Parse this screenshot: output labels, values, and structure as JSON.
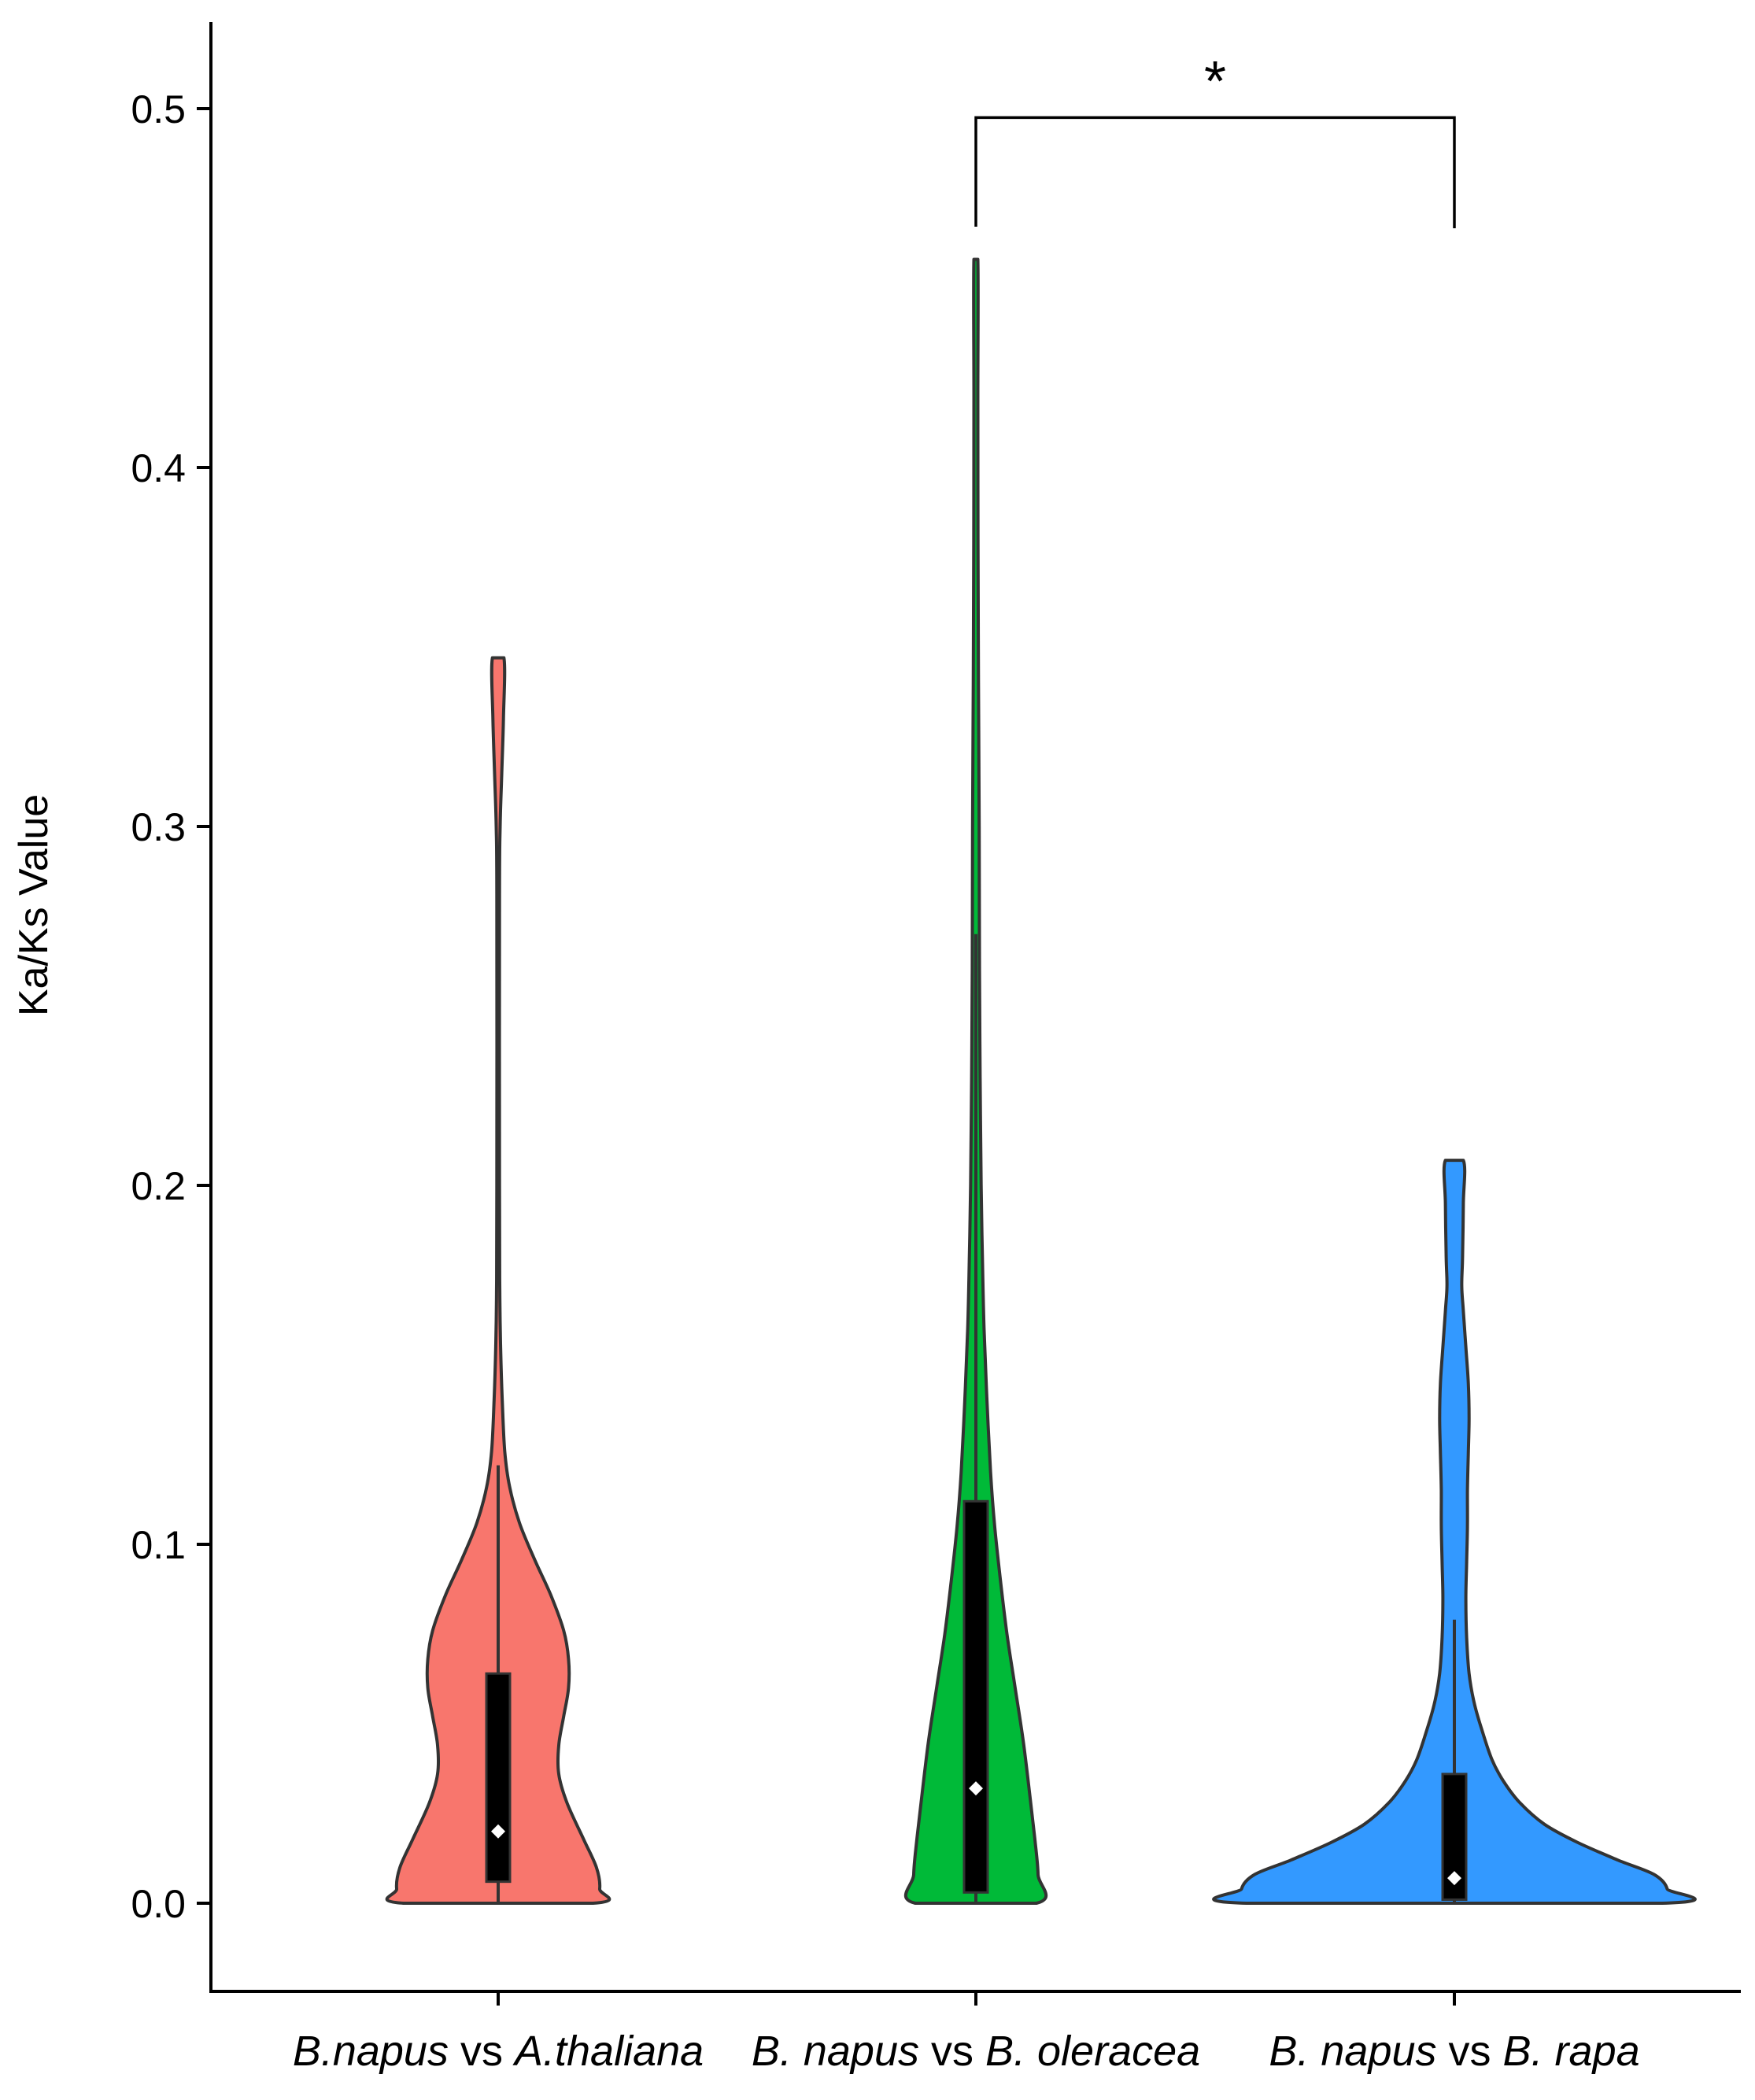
{
  "chart_data": {
    "type": "violin",
    "ylabel": "Ka/Ks Value",
    "ylim": [
      -0.025,
      0.525
    ],
    "yticks": [
      "0.0",
      "0.1",
      "0.2",
      "0.3",
      "0.4",
      "0.5"
    ],
    "ytick_values": [
      0.0,
      0.1,
      0.2,
      0.3,
      0.4,
      0.5
    ],
    "grid": false,
    "legend": "none",
    "categories": [
      {
        "parts": [
          {
            "text": "B.napus",
            "italic": true
          },
          {
            "text": " vs ",
            "italic": false
          },
          {
            "text": "A.thaliana",
            "italic": true
          }
        ]
      },
      {
        "parts": [
          {
            "text": "B. napus",
            "italic": true
          },
          {
            "text": " vs ",
            "italic": false
          },
          {
            "text": "B. oleracea",
            "italic": true
          }
        ]
      },
      {
        "parts": [
          {
            "text": "B. napus",
            "italic": true
          },
          {
            "text": " vs ",
            "italic": false
          },
          {
            "text": "B. rapa",
            "italic": true
          }
        ]
      }
    ],
    "series": [
      {
        "color": "#F8766D",
        "min": 0.0,
        "max": 0.347,
        "box": {
          "q1": 0.006,
          "median": 0.02,
          "q3": 0.064,
          "whisker_low": 0.0,
          "whisker_high": 0.122
        },
        "density": [
          [
            0.0,
            0.58
          ],
          [
            0.004,
            0.62
          ],
          [
            0.01,
            0.6
          ],
          [
            0.018,
            0.52
          ],
          [
            0.028,
            0.42
          ],
          [
            0.036,
            0.37
          ],
          [
            0.044,
            0.37
          ],
          [
            0.052,
            0.4
          ],
          [
            0.06,
            0.43
          ],
          [
            0.068,
            0.43
          ],
          [
            0.076,
            0.4
          ],
          [
            0.086,
            0.32
          ],
          [
            0.096,
            0.22
          ],
          [
            0.106,
            0.13
          ],
          [
            0.116,
            0.07
          ],
          [
            0.126,
            0.04
          ],
          [
            0.14,
            0.025
          ],
          [
            0.155,
            0.015
          ],
          [
            0.17,
            0.01
          ],
          [
            0.2,
            0.008
          ],
          [
            0.28,
            0.008
          ],
          [
            0.3,
            0.012
          ],
          [
            0.315,
            0.022
          ],
          [
            0.33,
            0.032
          ],
          [
            0.347,
            0.035
          ]
        ]
      },
      {
        "color": "#00BA38",
        "min": 0.0,
        "max": 0.458,
        "box": {
          "q1": 0.003,
          "median": 0.032,
          "q3": 0.112,
          "whisker_low": 0.0,
          "whisker_high": 0.27
        },
        "density": [
          [
            0.0,
            0.37
          ],
          [
            0.008,
            0.38
          ],
          [
            0.018,
            0.36
          ],
          [
            0.03,
            0.33
          ],
          [
            0.045,
            0.29
          ],
          [
            0.06,
            0.24
          ],
          [
            0.075,
            0.19
          ],
          [
            0.09,
            0.15
          ],
          [
            0.105,
            0.115
          ],
          [
            0.12,
            0.09
          ],
          [
            0.14,
            0.068
          ],
          [
            0.16,
            0.05
          ],
          [
            0.18,
            0.04
          ],
          [
            0.2,
            0.032
          ],
          [
            0.23,
            0.026
          ],
          [
            0.26,
            0.022
          ],
          [
            0.3,
            0.02
          ],
          [
            0.34,
            0.016
          ],
          [
            0.38,
            0.013
          ],
          [
            0.42,
            0.012
          ],
          [
            0.458,
            0.012
          ]
        ]
      },
      {
        "color": "#3399FF",
        "min": 0.0,
        "max": 0.207,
        "box": {
          "q1": 0.001,
          "median": 0.007,
          "q3": 0.036,
          "whisker_low": 0.0,
          "whisker_high": 0.079
        },
        "density": [
          [
            0.0,
            1.27
          ],
          [
            0.004,
            1.3
          ],
          [
            0.008,
            1.22
          ],
          [
            0.012,
            1.0
          ],
          [
            0.017,
            0.75
          ],
          [
            0.022,
            0.55
          ],
          [
            0.028,
            0.4
          ],
          [
            0.034,
            0.3
          ],
          [
            0.04,
            0.23
          ],
          [
            0.048,
            0.17
          ],
          [
            0.056,
            0.12
          ],
          [
            0.064,
            0.09
          ],
          [
            0.074,
            0.075
          ],
          [
            0.085,
            0.07
          ],
          [
            0.095,
            0.075
          ],
          [
            0.105,
            0.08
          ],
          [
            0.115,
            0.08
          ],
          [
            0.125,
            0.085
          ],
          [
            0.135,
            0.09
          ],
          [
            0.145,
            0.085
          ],
          [
            0.155,
            0.07
          ],
          [
            0.165,
            0.055
          ],
          [
            0.172,
            0.045
          ],
          [
            0.18,
            0.05
          ],
          [
            0.195,
            0.055
          ],
          [
            0.207,
            0.055
          ]
        ]
      }
    ],
    "annotations": [
      {
        "type": "significance-bracket",
        "from": 1,
        "to": 2,
        "label": "*",
        "y": 0.4975
      }
    ]
  }
}
